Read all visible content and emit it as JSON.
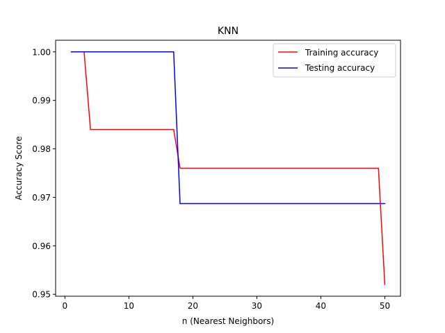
{
  "chart_data": {
    "type": "line",
    "title": "KNN",
    "xlabel": "n (Nearest Neighbors)",
    "ylabel": "Accuracy Score",
    "xlim": [
      -1.45,
      52.45
    ],
    "ylim": [
      0.9496,
      1.0024
    ],
    "xticks": [
      0,
      10,
      20,
      30,
      40,
      50
    ],
    "yticks": [
      0.95,
      0.96,
      0.97,
      0.98,
      0.99,
      1.0
    ],
    "ytick_labels": [
      "0.95",
      "0.96",
      "0.97",
      "0.98",
      "0.99",
      "1.00"
    ],
    "grid": false,
    "legend_position": "top-right",
    "series": [
      {
        "name": "Training accuracy",
        "color": "#ff0000",
        "points": [
          [
            1,
            1.0
          ],
          [
            3,
            1.0
          ],
          [
            4,
            0.984
          ],
          [
            17,
            0.984
          ],
          [
            18,
            0.976
          ],
          [
            49,
            0.976
          ],
          [
            50,
            0.952
          ]
        ]
      },
      {
        "name": "Testing accuracy",
        "color": "#0000ff",
        "points": [
          [
            1,
            1.0
          ],
          [
            17,
            1.0
          ],
          [
            18,
            0.9687
          ],
          [
            50,
            0.9687
          ]
        ]
      }
    ]
  }
}
